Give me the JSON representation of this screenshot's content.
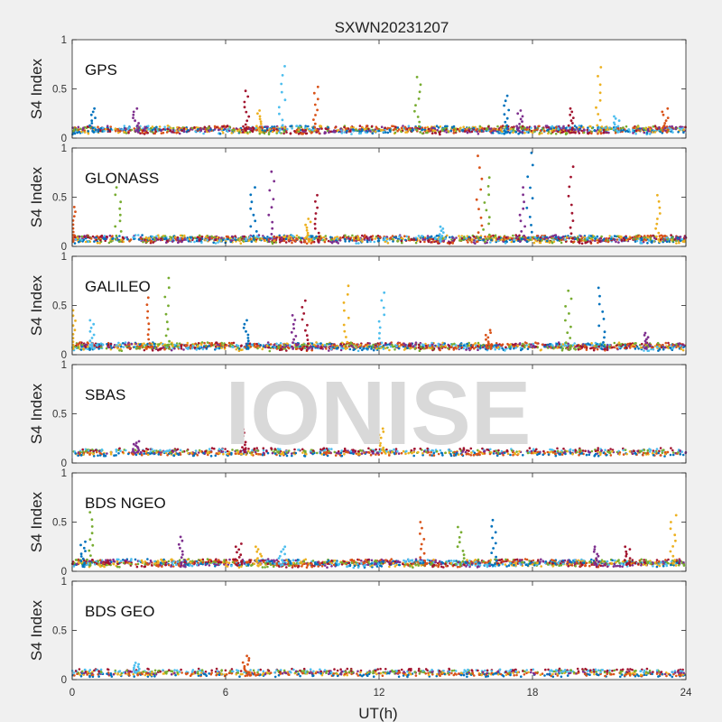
{
  "chart_data": {
    "type": "scatter",
    "title": "SXWN20231207",
    "xlabel": "UT(h)",
    "ylabel": "S4 Index",
    "xlim": [
      0,
      24
    ],
    "ylim": [
      0,
      1
    ],
    "xticks": [
      "0",
      "6",
      "12",
      "18",
      "24"
    ],
    "yticks": [
      "0",
      "0.5",
      "1"
    ],
    "watermark": "IONISE",
    "colors": [
      "#0072BD",
      "#D95319",
      "#EDB120",
      "#7E2F8E",
      "#77AC30",
      "#4DBEEE",
      "#A2142F"
    ],
    "panels": [
      {
        "label": "GPS",
        "baseline": 0.06,
        "peaks": [
          [
            0.8,
            0.3
          ],
          [
            2.5,
            0.3
          ],
          [
            6.8,
            0.48
          ],
          [
            7.3,
            0.28
          ],
          [
            8.2,
            0.73
          ],
          [
            9.5,
            0.52
          ],
          [
            13.5,
            0.62
          ],
          [
            17.0,
            0.43
          ],
          [
            17.5,
            0.28
          ],
          [
            19.5,
            0.3
          ],
          [
            20.6,
            0.72
          ],
          [
            21.3,
            0.22
          ],
          [
            23.2,
            0.3
          ]
        ]
      },
      {
        "label": "GLONASS",
        "baseline": 0.05,
        "peaks": [
          [
            0.0,
            0.4
          ],
          [
            1.8,
            0.6
          ],
          [
            7.1,
            0.6
          ],
          [
            7.8,
            0.76
          ],
          [
            9.6,
            0.52
          ],
          [
            9.2,
            0.28
          ],
          [
            14.5,
            0.2
          ],
          [
            15.9,
            0.92
          ],
          [
            16.2,
            0.7
          ],
          [
            17.9,
            0.95
          ],
          [
            17.6,
            0.6
          ],
          [
            19.5,
            0.81
          ],
          [
            22.9,
            0.52
          ]
        ]
      },
      {
        "label": "GALILEO",
        "baseline": 0.06,
        "peaks": [
          [
            0.0,
            0.45
          ],
          [
            0.8,
            0.35
          ],
          [
            3.0,
            0.58
          ],
          [
            3.7,
            0.78
          ],
          [
            6.8,
            0.35
          ],
          [
            8.7,
            0.4
          ],
          [
            9.1,
            0.55
          ],
          [
            10.7,
            0.7
          ],
          [
            12.1,
            0.63
          ],
          [
            16.3,
            0.25
          ],
          [
            19.4,
            0.65
          ],
          [
            20.7,
            0.68
          ],
          [
            22.5,
            0.22
          ]
        ]
      },
      {
        "label": "SBAS",
        "baseline": 0.11,
        "peaks": [
          [
            2.5,
            0.22
          ],
          [
            6.7,
            0.38
          ],
          [
            12.1,
            0.35
          ]
        ]
      },
      {
        "label": "BDS NGEO",
        "baseline": 0.06,
        "peaks": [
          [
            0.7,
            0.6
          ],
          [
            0.4,
            0.3
          ],
          [
            4.3,
            0.35
          ],
          [
            6.5,
            0.28
          ],
          [
            7.3,
            0.25
          ],
          [
            8.2,
            0.25
          ],
          [
            13.7,
            0.5
          ],
          [
            15.2,
            0.45
          ],
          [
            16.5,
            0.52
          ],
          [
            20.5,
            0.25
          ],
          [
            21.7,
            0.25
          ],
          [
            23.5,
            0.57
          ]
        ]
      },
      {
        "label": "BDS GEO",
        "baseline": 0.07,
        "peaks": [
          [
            2.5,
            0.17
          ],
          [
            6.8,
            0.24
          ]
        ]
      }
    ]
  }
}
